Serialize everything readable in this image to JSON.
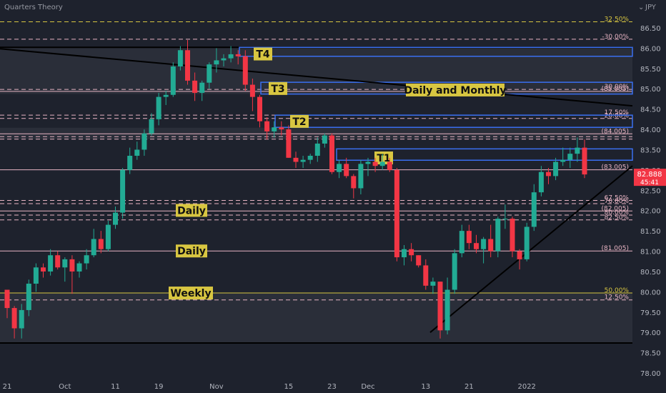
{
  "chart_data": {
    "type": "candlestick",
    "title": "Quarters Theory",
    "currency": "JPY",
    "ylim": [
      77.85,
      86.75
    ],
    "y_ticks": [
      "86.50",
      "86.00",
      "85.50",
      "85.00",
      "84.50",
      "84.00",
      "83.50",
      "83.00",
      "82.50",
      "82.00",
      "81.50",
      "81.00",
      "80.50",
      "80.00",
      "79.50",
      "79.00",
      "78.50",
      "78.00"
    ],
    "x_ticks": [
      {
        "label": "21",
        "index": 0
      },
      {
        "label": "Oct",
        "index": 8
      },
      {
        "label": "11",
        "index": 15
      },
      {
        "label": "19",
        "index": 21
      },
      {
        "label": "Nov",
        "index": 29
      },
      {
        "label": "15",
        "index": 39
      },
      {
        "label": "23",
        "index": 45
      },
      {
        "label": "Dec",
        "index": 50
      },
      {
        "label": "13",
        "index": 58
      },
      {
        "label": "21",
        "index": 64
      },
      {
        "label": "2022",
        "index": 72
      }
    ],
    "last_price": "82.888",
    "countdown": "45:41",
    "candles": [
      [
        80.05,
        80.05,
        79.35,
        79.6
      ],
      [
        79.6,
        79.65,
        78.85,
        79.1
      ],
      [
        79.1,
        79.7,
        78.85,
        79.55
      ],
      [
        79.55,
        80.3,
        79.4,
        80.2
      ],
      [
        80.2,
        80.7,
        80.0,
        80.6
      ],
      [
        80.6,
        80.7,
        80.35,
        80.5
      ],
      [
        80.5,
        81.05,
        80.4,
        80.9
      ],
      [
        80.9,
        81.0,
        80.55,
        80.6
      ],
      [
        80.6,
        80.85,
        80.25,
        80.8
      ],
      [
        80.8,
        80.9,
        79.95,
        80.5
      ],
      [
        80.5,
        80.75,
        80.35,
        80.7
      ],
      [
        80.7,
        81.05,
        80.55,
        80.9
      ],
      [
        80.9,
        81.55,
        80.85,
        81.3
      ],
      [
        81.3,
        81.5,
        80.95,
        81.05
      ],
      [
        81.05,
        81.75,
        81.0,
        81.65
      ],
      [
        81.65,
        82.1,
        81.55,
        81.95
      ],
      [
        81.95,
        83.05,
        81.8,
        83.0
      ],
      [
        83.0,
        83.55,
        82.9,
        83.35
      ],
      [
        83.35,
        83.7,
        83.25,
        83.5
      ],
      [
        83.5,
        84.0,
        83.35,
        83.9
      ],
      [
        83.9,
        84.4,
        83.85,
        84.25
      ],
      [
        84.25,
        84.9,
        84.1,
        84.8
      ],
      [
        84.8,
        84.95,
        84.6,
        84.85
      ],
      [
        84.85,
        85.65,
        84.8,
        85.55
      ],
      [
        85.55,
        86.05,
        85.45,
        85.95
      ],
      [
        85.95,
        86.2,
        85.1,
        85.2
      ],
      [
        85.2,
        85.4,
        84.7,
        84.9
      ],
      [
        84.9,
        85.2,
        84.7,
        85.15
      ],
      [
        85.15,
        85.65,
        85.0,
        85.6
      ],
      [
        85.6,
        86.0,
        85.4,
        85.7
      ],
      [
        85.7,
        85.85,
        85.55,
        85.75
      ],
      [
        85.75,
        86.05,
        85.65,
        85.85
      ],
      [
        85.85,
        85.95,
        85.6,
        85.8
      ],
      [
        85.8,
        85.95,
        84.95,
        85.1
      ],
      [
        85.1,
        85.25,
        84.45,
        84.8
      ],
      [
        84.8,
        84.85,
        84.05,
        84.2
      ],
      [
        84.2,
        84.3,
        83.75,
        83.95
      ],
      [
        83.95,
        84.2,
        83.8,
        84.05
      ],
      [
        84.05,
        84.2,
        83.85,
        84.0
      ],
      [
        84.0,
        84.1,
        83.3,
        83.3
      ],
      [
        83.3,
        83.45,
        83.05,
        83.2
      ],
      [
        83.2,
        83.35,
        83.05,
        83.25
      ],
      [
        83.25,
        83.4,
        83.15,
        83.35
      ],
      [
        83.35,
        83.8,
        83.2,
        83.65
      ],
      [
        83.65,
        83.9,
        83.55,
        83.85
      ],
      [
        83.85,
        83.9,
        82.9,
        82.95
      ],
      [
        82.95,
        83.25,
        82.8,
        83.15
      ],
      [
        83.15,
        83.3,
        82.8,
        82.85
      ],
      [
        82.85,
        82.9,
        82.3,
        82.55
      ],
      [
        82.55,
        83.25,
        82.4,
        83.15
      ],
      [
        83.15,
        83.3,
        82.85,
        83.2
      ],
      [
        83.2,
        83.3,
        82.95,
        83.1
      ],
      [
        83.1,
        83.4,
        83.0,
        83.2
      ],
      [
        83.2,
        83.3,
        82.95,
        83.0
      ],
      [
        83.0,
        83.05,
        80.75,
        80.85
      ],
      [
        80.85,
        81.15,
        80.65,
        81.05
      ],
      [
        81.05,
        81.2,
        80.75,
        80.9
      ],
      [
        80.9,
        80.9,
        80.6,
        80.65
      ],
      [
        80.65,
        80.8,
        80.05,
        80.15
      ],
      [
        80.15,
        80.35,
        79.95,
        80.25
      ],
      [
        80.25,
        80.25,
        78.85,
        79.05
      ],
      [
        79.05,
        80.35,
        78.95,
        80.05
      ],
      [
        80.05,
        81.05,
        79.95,
        80.95
      ],
      [
        80.95,
        81.65,
        80.85,
        81.5
      ],
      [
        81.5,
        81.65,
        81.05,
        81.2
      ],
      [
        81.2,
        81.4,
        80.95,
        81.05
      ],
      [
        81.05,
        81.35,
        80.7,
        81.3
      ],
      [
        81.3,
        81.65,
        80.85,
        81.0
      ],
      [
        81.0,
        81.85,
        80.85,
        81.8
      ],
      [
        81.8,
        82.15,
        81.55,
        81.8
      ],
      [
        81.8,
        81.85,
        80.85,
        81.0
      ],
      [
        81.0,
        81.05,
        80.55,
        80.8
      ],
      [
        80.8,
        81.7,
        80.75,
        81.6
      ],
      [
        81.6,
        82.65,
        81.5,
        82.45
      ],
      [
        82.45,
        83.1,
        82.35,
        82.95
      ],
      [
        82.95,
        83.05,
        82.65,
        82.85
      ],
      [
        82.85,
        83.3,
        82.75,
        83.2
      ],
      [
        83.2,
        83.55,
        83.1,
        83.25
      ],
      [
        83.25,
        83.55,
        83.05,
        83.4
      ],
      [
        83.4,
        83.8,
        83.2,
        83.55
      ],
      [
        83.55,
        83.75,
        82.8,
        82.89
      ]
    ],
    "levels": [
      {
        "price": 86.65,
        "label": "32.50%",
        "style": "yellow-dashed"
      },
      {
        "price": 86.22,
        "label": "-30.00%",
        "style": "pink-dashed"
      },
      {
        "price": 84.985,
        "label": "30.00%",
        "style": "pink-dashed"
      },
      {
        "price": 84.935,
        "label": "(85.005)",
        "style": "pink-solid"
      },
      {
        "price": 84.35,
        "label": "17.50%",
        "style": "pink-dashed"
      },
      {
        "price": 84.27,
        "label": "20.00%",
        "style": "pink-dashed"
      },
      {
        "price": 83.89,
        "label": "(84.005)",
        "style": "pink-solid"
      },
      {
        "price": 83.82,
        "label": "",
        "style": "pink-dashed"
      },
      {
        "price": 83.76,
        "label": "",
        "style": "pink-dashed"
      },
      {
        "price": 83.005,
        "label": "(83.005)",
        "style": "pink-solid"
      },
      {
        "price": 82.25,
        "label": "67.50%",
        "style": "pink-dashed"
      },
      {
        "price": 82.17,
        "label": "70.00%",
        "style": "pink-dashed"
      },
      {
        "price": 81.99,
        "label": "(82.005)",
        "style": "pink-solid"
      },
      {
        "price": 81.89,
        "label": "80.00%",
        "style": "pink-dashed"
      },
      {
        "price": 81.77,
        "label": "82.50%",
        "style": "pink-dashed"
      },
      {
        "price": 81.005,
        "label": "(81.005)",
        "style": "pink-solid"
      },
      {
        "price": 79.97,
        "label": "50.00%",
        "style": "yellow-solid"
      },
      {
        "price": 79.8,
        "label": "12.50%",
        "style": "pink-dashed"
      }
    ],
    "zones": [
      {
        "label": "T4",
        "label_box": true
      },
      {
        "label": "T3",
        "label_box": true
      },
      {
        "label": "T2",
        "label_box": true
      },
      {
        "label": "T1",
        "label_box": true
      }
    ],
    "annotations": [
      "Daily and Monthly",
      "Daily",
      "Daily",
      "Weekly"
    ]
  }
}
